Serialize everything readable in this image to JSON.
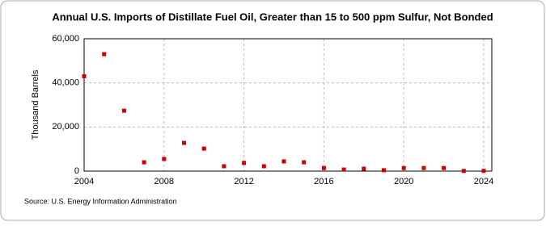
{
  "chart_data": {
    "type": "scatter",
    "title": "Annual U.S. Imports of Distillate Fuel Oil, Greater than 15 to 500 ppm Sulfur, Not Bonded",
    "y_label": "Thousand Barrels",
    "source": "Source: U.S. Energy Information Administration",
    "x": [
      2004,
      2005,
      2006,
      2007,
      2008,
      2009,
      2010,
      2011,
      2012,
      2013,
      2014,
      2015,
      2016,
      2017,
      2018,
      2019,
      2020,
      2021,
      2022,
      2023,
      2024
    ],
    "values": [
      43000,
      53000,
      27400,
      4000,
      5500,
      12800,
      10200,
      2200,
      3700,
      2200,
      4400,
      4000,
      1400,
      700,
      1100,
      400,
      1400,
      1400,
      1400,
      100,
      100
    ],
    "color": "#cc0000",
    "xlim": [
      2004,
      2024
    ],
    "xticks": [
      2004,
      2008,
      2012,
      2016,
      2020,
      2024
    ],
    "ylim": [
      0,
      60000
    ],
    "yticks": [
      0,
      {
        "value": 20000,
        "label": "20,000"
      },
      {
        "value": 40000,
        "label": "40,000"
      },
      {
        "value": 60000,
        "label": "60,000"
      }
    ],
    "grid": true
  }
}
